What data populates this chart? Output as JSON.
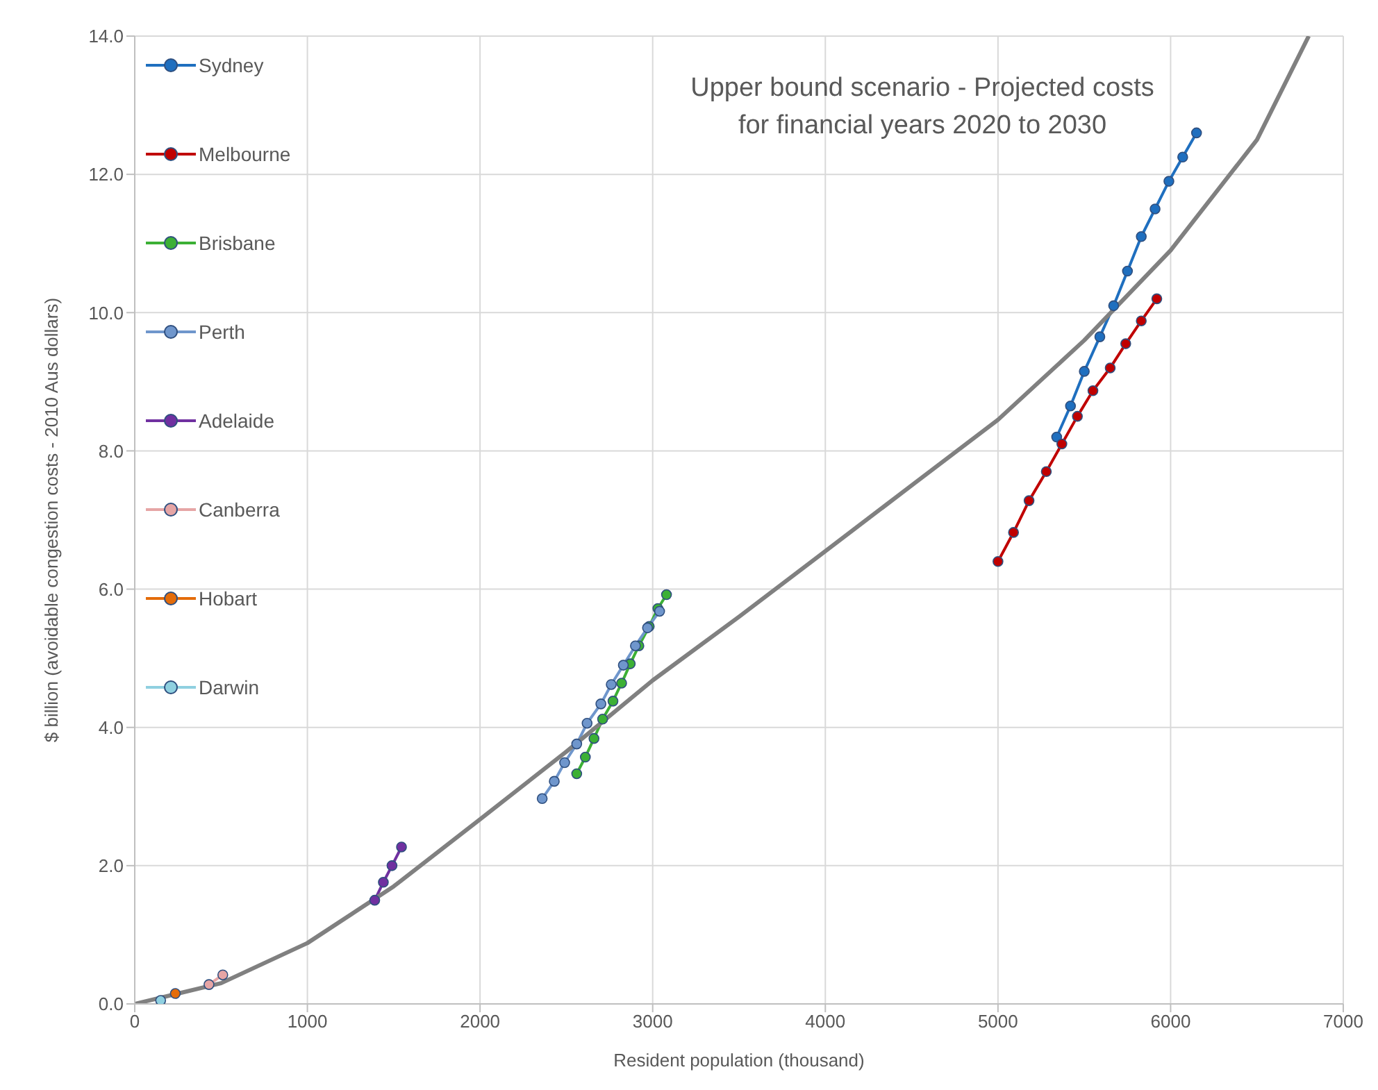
{
  "chart_data": {
    "type": "line",
    "title": "Upper bound scenario - Projected costs\nfor financial years 2020 to 2030",
    "xlabel": "Resident population (thousand)",
    "ylabel": "$ billion (avoidable congestion costs - 2010 Aus dollars)",
    "xlim": [
      0,
      7000
    ],
    "xticks": [
      0,
      1000,
      2000,
      3000,
      4000,
      5000,
      6000,
      7000
    ],
    "ylim": [
      0,
      14
    ],
    "yticks": [
      {
        "value": 0,
        "label": "0.0"
      },
      {
        "value": 2,
        "label": "2.0"
      },
      {
        "value": 4,
        "label": "4.0"
      },
      {
        "value": 6,
        "label": "6.0"
      },
      {
        "value": 8,
        "label": "8.0"
      },
      {
        "value": 10,
        "label": "10.0"
      },
      {
        "value": 12,
        "label": "12.0"
      },
      {
        "value": 14,
        "label": "14.0"
      }
    ],
    "grid": true,
    "legend": "top left",
    "marker": "circle",
    "line_style": "solid",
    "series": [
      {
        "name": "Sydney",
        "color": "#1f6fbf",
        "x": [
          5340,
          5420,
          5500,
          5590,
          5670,
          5750,
          5830,
          5910,
          5990,
          6070,
          6150
        ],
        "values": [
          8.2,
          8.65,
          9.15,
          9.65,
          10.1,
          10.6,
          11.1,
          11.5,
          11.9,
          12.25,
          12.6
        ]
      },
      {
        "name": "Melbourne",
        "color": "#c00000",
        "x": [
          5000,
          5090,
          5180,
          5280,
          5370,
          5460,
          5550,
          5650,
          5740,
          5830,
          5920
        ],
        "values": [
          6.4,
          6.82,
          7.28,
          7.7,
          8.1,
          8.5,
          8.87,
          9.2,
          9.55,
          9.88,
          10.2
        ]
      },
      {
        "name": "Brisbane",
        "color": "#3cb035",
        "x": [
          2560,
          2610,
          2660,
          2710,
          2770,
          2820,
          2870,
          2920,
          2980,
          3030,
          3080
        ],
        "values": [
          3.33,
          3.57,
          3.84,
          4.12,
          4.38,
          4.64,
          4.92,
          5.18,
          5.46,
          5.72,
          5.92
        ]
      },
      {
        "name": "Perth",
        "color": "#6f96cc",
        "x": [
          2360,
          2430,
          2490,
          2560,
          2620,
          2700,
          2760,
          2830,
          2900,
          2970,
          3040
        ],
        "values": [
          2.97,
          3.22,
          3.49,
          3.76,
          4.06,
          4.34,
          4.62,
          4.9,
          5.18,
          5.44,
          5.68
        ]
      },
      {
        "name": "Adelaide",
        "color": "#7030a0",
        "x": [
          1390,
          1440,
          1490,
          1545
        ],
        "values": [
          1.5,
          1.76,
          2.0,
          2.27
        ]
      },
      {
        "name": "Canberra",
        "color": "#e6a5a5",
        "x": [
          430,
          510
        ],
        "values": [
          0.28,
          0.42
        ]
      },
      {
        "name": "Hobart",
        "color": "#e46c0a",
        "x": [
          235
        ],
        "values": [
          0.15
        ]
      },
      {
        "name": "Darwin",
        "color": "#8fd0e0",
        "x": [
          150
        ],
        "values": [
          0.05
        ]
      },
      {
        "type": "line",
        "color": "#808080",
        "marker": "none",
        "x": [
          0,
          500,
          1000,
          1500,
          2000,
          2500,
          3000,
          3500,
          4000,
          4500,
          5000,
          5500,
          6000,
          6500,
          6800
        ],
        "values": [
          0,
          0.3,
          0.88,
          1.7,
          2.67,
          3.65,
          4.68,
          5.6,
          6.55,
          7.5,
          8.45,
          9.6,
          10.9,
          12.5,
          14
        ]
      }
    ]
  }
}
